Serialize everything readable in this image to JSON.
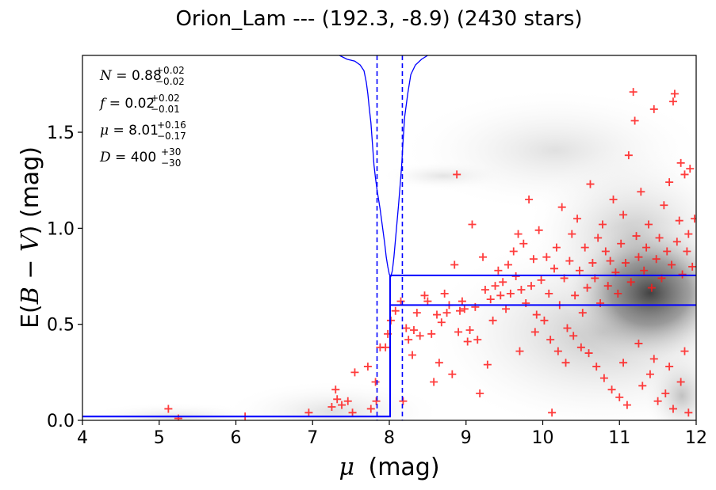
{
  "chart_data": {
    "type": "scatter",
    "title": "Orion_Lam --- (192.3, -8.9) (2430 stars)",
    "xlabel_symbol": "μ",
    "xlabel_unit": "(mag)",
    "ylabel_prefix": "E(",
    "ylabel_expr": "B − V",
    "ylabel_suffix": ") (mag)",
    "xlim": [
      4,
      12
    ],
    "ylim": [
      0,
      1.9
    ],
    "xticks": [
      "4",
      "5",
      "6",
      "7",
      "8",
      "9",
      "10",
      "11",
      "12"
    ],
    "yticks": [
      "0.0",
      "0.5",
      "1.0",
      "1.5"
    ],
    "annotations": [
      {
        "sym": "N",
        "val": "0.88",
        "up": "+0.02",
        "down": "−0.02"
      },
      {
        "sym": "f",
        "val": "0.02",
        "up": "+0.02",
        "down": "−0.01"
      },
      {
        "sym": "μ",
        "val": "8.01",
        "up": "+0.16",
        "down": "−0.17"
      },
      {
        "sym": "D",
        "val": "400",
        "up": "+30",
        "down": "−30"
      }
    ],
    "model_step": {
      "x": [
        4,
        8.01,
        8.01,
        12
      ],
      "lower": [
        0.02,
        0.02,
        0.6,
        0.6
      ],
      "upper": [
        0.02,
        0.02,
        0.755,
        0.755
      ]
    },
    "distance_bounds": [
      7.84,
      8.17
    ],
    "likelihood_curve": [
      [
        7.35,
        1.9
      ],
      [
        7.45,
        1.88
      ],
      [
        7.55,
        1.87
      ],
      [
        7.62,
        1.85
      ],
      [
        7.67,
        1.82
      ],
      [
        7.7,
        1.76
      ],
      [
        7.72,
        1.7
      ],
      [
        7.74,
        1.62
      ],
      [
        7.76,
        1.55
      ],
      [
        7.78,
        1.44
      ],
      [
        7.8,
        1.33
      ],
      [
        7.82,
        1.26
      ],
      [
        7.84,
        1.2
      ],
      [
        7.86,
        1.15
      ],
      [
        7.88,
        1.1
      ],
      [
        7.9,
        1.04
      ],
      [
        7.92,
        0.98
      ],
      [
        7.94,
        0.92
      ],
      [
        7.96,
        0.85
      ],
      [
        7.98,
        0.8
      ],
      [
        8.0,
        0.76
      ],
      [
        8.02,
        0.75
      ],
      [
        8.04,
        0.78
      ],
      [
        8.06,
        0.85
      ],
      [
        8.08,
        0.94
      ],
      [
        8.1,
        1.03
      ],
      [
        8.12,
        1.12
      ],
      [
        8.14,
        1.22
      ],
      [
        8.16,
        1.32
      ],
      [
        8.18,
        1.46
      ],
      [
        8.2,
        1.58
      ],
      [
        8.24,
        1.7
      ],
      [
        8.28,
        1.8
      ],
      [
        8.34,
        1.85
      ],
      [
        8.42,
        1.88
      ],
      [
        8.5,
        1.9
      ]
    ],
    "stars": [
      [
        5.12,
        0.06
      ],
      [
        5.25,
        0.01
      ],
      [
        6.12,
        0.02
      ],
      [
        6.95,
        0.04
      ],
      [
        7.25,
        0.07
      ],
      [
        7.32,
        0.11
      ],
      [
        7.3,
        0.16
      ],
      [
        7.38,
        0.08
      ],
      [
        7.46,
        0.1
      ],
      [
        7.52,
        0.04
      ],
      [
        7.55,
        0.25
      ],
      [
        7.72,
        0.28
      ],
      [
        7.76,
        0.06
      ],
      [
        7.83,
        0.1
      ],
      [
        7.82,
        0.2
      ],
      [
        7.88,
        0.38
      ],
      [
        7.95,
        0.38
      ],
      [
        7.98,
        0.45
      ],
      [
        8.02,
        0.52
      ],
      [
        8.08,
        0.57
      ],
      [
        8.15,
        0.62
      ],
      [
        8.18,
        0.1
      ],
      [
        8.22,
        0.48
      ],
      [
        8.25,
        0.42
      ],
      [
        8.3,
        0.34
      ],
      [
        8.32,
        0.47
      ],
      [
        8.36,
        0.56
      ],
      [
        8.4,
        0.44
      ],
      [
        8.46,
        0.65
      ],
      [
        8.5,
        0.62
      ],
      [
        8.55,
        0.45
      ],
      [
        8.58,
        0.2
      ],
      [
        8.62,
        0.55
      ],
      [
        8.65,
        0.3
      ],
      [
        8.68,
        0.51
      ],
      [
        8.72,
        0.66
      ],
      [
        8.75,
        0.56
      ],
      [
        8.78,
        0.6
      ],
      [
        8.82,
        0.24
      ],
      [
        8.85,
        0.81
      ],
      [
        8.88,
        1.28
      ],
      [
        8.9,
        0.46
      ],
      [
        8.92,
        0.57
      ],
      [
        8.95,
        0.62
      ],
      [
        8.98,
        0.58
      ],
      [
        9.02,
        0.41
      ],
      [
        9.05,
        0.47
      ],
      [
        9.08,
        1.02
      ],
      [
        9.12,
        0.59
      ],
      [
        9.15,
        0.42
      ],
      [
        9.18,
        0.14
      ],
      [
        9.22,
        0.85
      ],
      [
        9.25,
        0.68
      ],
      [
        9.28,
        0.29
      ],
      [
        9.32,
        0.63
      ],
      [
        9.35,
        0.52
      ],
      [
        9.38,
        0.7
      ],
      [
        9.42,
        0.78
      ],
      [
        9.45,
        0.65
      ],
      [
        9.48,
        0.72
      ],
      [
        9.52,
        0.58
      ],
      [
        9.55,
        0.81
      ],
      [
        9.58,
        0.66
      ],
      [
        9.62,
        0.88
      ],
      [
        9.65,
        0.75
      ],
      [
        9.68,
        0.97
      ],
      [
        9.72,
        0.68
      ],
      [
        9.75,
        0.92
      ],
      [
        9.78,
        0.61
      ],
      [
        9.82,
        1.15
      ],
      [
        9.85,
        0.7
      ],
      [
        9.88,
        0.84
      ],
      [
        9.92,
        0.55
      ],
      [
        9.95,
        0.99
      ],
      [
        9.98,
        0.73
      ],
      [
        10.02,
        0.52
      ],
      [
        10.05,
        0.85
      ],
      [
        10.08,
        0.66
      ],
      [
        10.12,
        0.04
      ],
      [
        10.15,
        0.79
      ],
      [
        10.18,
        0.9
      ],
      [
        10.22,
        0.6
      ],
      [
        10.25,
        1.11
      ],
      [
        10.28,
        0.74
      ],
      [
        10.32,
        0.48
      ],
      [
        10.35,
        0.83
      ],
      [
        10.38,
        0.97
      ],
      [
        10.42,
        0.65
      ],
      [
        10.45,
        1.05
      ],
      [
        10.48,
        0.78
      ],
      [
        10.52,
        0.56
      ],
      [
        10.55,
        0.9
      ],
      [
        10.58,
        0.69
      ],
      [
        10.62,
        1.23
      ],
      [
        10.65,
        0.82
      ],
      [
        10.68,
        0.74
      ],
      [
        10.72,
        0.95
      ],
      [
        10.75,
        0.61
      ],
      [
        10.78,
        1.02
      ],
      [
        10.82,
        0.88
      ],
      [
        10.85,
        0.7
      ],
      [
        10.88,
        0.83
      ],
      [
        10.92,
        1.15
      ],
      [
        10.95,
        0.77
      ],
      [
        10.98,
        0.66
      ],
      [
        11.02,
        0.92
      ],
      [
        11.05,
        1.07
      ],
      [
        11.08,
        0.82
      ],
      [
        11.12,
        1.38
      ],
      [
        11.15,
        0.72
      ],
      [
        11.18,
        1.71
      ],
      [
        11.2,
        1.56
      ],
      [
        11.22,
        0.96
      ],
      [
        11.25,
        0.85
      ],
      [
        11.28,
        1.19
      ],
      [
        11.32,
        0.78
      ],
      [
        11.35,
        0.9
      ],
      [
        11.38,
        1.02
      ],
      [
        11.42,
        0.69
      ],
      [
        11.45,
        1.62
      ],
      [
        11.48,
        0.84
      ],
      [
        11.52,
        0.95
      ],
      [
        11.55,
        0.74
      ],
      [
        11.58,
        1.12
      ],
      [
        11.62,
        0.88
      ],
      [
        11.65,
        1.24
      ],
      [
        11.68,
        0.81
      ],
      [
        11.7,
        1.66
      ],
      [
        11.72,
        1.7
      ],
      [
        11.75,
        0.93
      ],
      [
        11.78,
        1.04
      ],
      [
        11.8,
        1.34
      ],
      [
        11.82,
        0.76
      ],
      [
        11.85,
        1.28
      ],
      [
        11.88,
        0.88
      ],
      [
        11.9,
        0.97
      ],
      [
        11.92,
        1.31
      ],
      [
        11.95,
        0.8
      ],
      [
        11.98,
        1.05
      ],
      [
        10.4,
        0.44
      ],
      [
        10.5,
        0.38
      ],
      [
        10.6,
        0.35
      ],
      [
        10.7,
        0.28
      ],
      [
        10.8,
        0.22
      ],
      [
        10.9,
        0.16
      ],
      [
        11.0,
        0.12
      ],
      [
        11.1,
        0.08
      ],
      [
        11.3,
        0.18
      ],
      [
        11.4,
        0.24
      ],
      [
        11.5,
        0.1
      ],
      [
        11.6,
        0.14
      ],
      [
        11.7,
        0.06
      ],
      [
        11.8,
        0.2
      ],
      [
        11.9,
        0.04
      ],
      [
        10.3,
        0.3
      ],
      [
        10.2,
        0.36
      ],
      [
        10.1,
        0.42
      ],
      [
        9.9,
        0.46
      ],
      [
        9.7,
        0.36
      ],
      [
        11.05,
        0.3
      ],
      [
        11.25,
        0.4
      ],
      [
        11.45,
        0.32
      ],
      [
        11.65,
        0.28
      ],
      [
        11.85,
        0.36
      ]
    ]
  }
}
